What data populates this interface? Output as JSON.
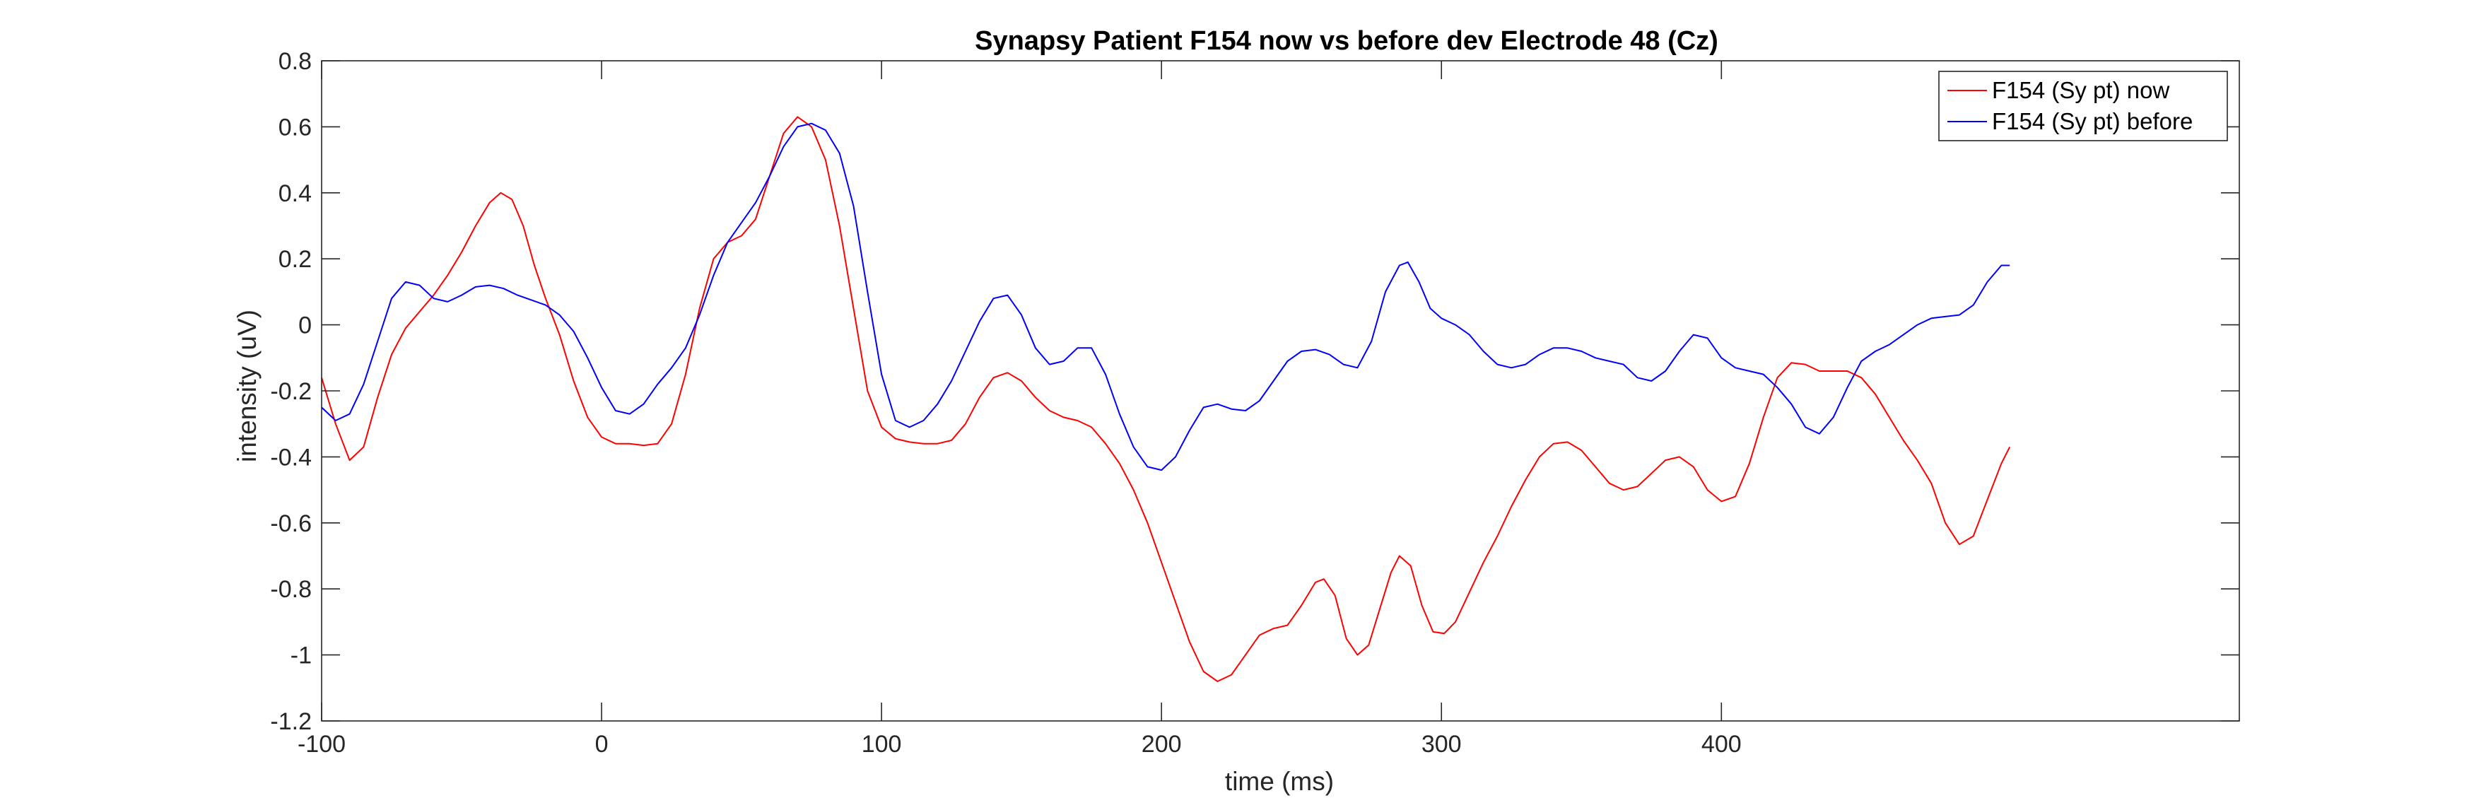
{
  "chart_data": {
    "type": "line",
    "title": "Synapsy Patient F154 now vs before dev Electrode 48 (Cz)",
    "xlabel": "time (ms)",
    "ylabel": "intensity (uV)",
    "xlim": [
      -100,
      585
    ],
    "ylim": [
      -1.2,
      0.8
    ],
    "xticks": [
      -100,
      0,
      100,
      200,
      300,
      400
    ],
    "xtick_labels": [
      "-100",
      "0",
      "100",
      "200",
      "300",
      "400"
    ],
    "yticks": [
      -1.2,
      -1,
      -0.8,
      -0.6,
      -0.4,
      -0.2,
      0,
      0.2,
      0.4,
      0.6,
      0.8
    ],
    "ytick_labels": [
      "-1.2",
      "-1",
      "-0.8",
      "-0.6",
      "-0.4",
      "-0.2",
      "0",
      "0.2",
      "0.4",
      "0.6",
      "0.8"
    ],
    "grid": false,
    "box": true,
    "legend_position": "top-right",
    "series": [
      {
        "name": "F154 (Sy pt) now",
        "color": "#ff0000",
        "points": [
          [
            -100,
            -0.16
          ],
          [
            -95,
            -0.3
          ],
          [
            -90,
            -0.41
          ],
          [
            -85,
            -0.37
          ],
          [
            -80,
            -0.22
          ],
          [
            -75,
            -0.09
          ],
          [
            -70,
            -0.01
          ],
          [
            -65,
            0.04
          ],
          [
            -60,
            0.09
          ],
          [
            -55,
            0.15
          ],
          [
            -50,
            0.22
          ],
          [
            -45,
            0.3
          ],
          [
            -40,
            0.37
          ],
          [
            -36,
            0.4
          ],
          [
            -32,
            0.38
          ],
          [
            -28,
            0.3
          ],
          [
            -24,
            0.18
          ],
          [
            -20,
            0.08
          ],
          [
            -15,
            -0.03
          ],
          [
            -10,
            -0.17
          ],
          [
            -5,
            -0.28
          ],
          [
            0,
            -0.34
          ],
          [
            5,
            -0.36
          ],
          [
            10,
            -0.36
          ],
          [
            15,
            -0.365
          ],
          [
            20,
            -0.36
          ],
          [
            25,
            -0.3
          ],
          [
            30,
            -0.15
          ],
          [
            35,
            0.05
          ],
          [
            40,
            0.2
          ],
          [
            45,
            0.25
          ],
          [
            50,
            0.27
          ],
          [
            55,
            0.32
          ],
          [
            60,
            0.45
          ],
          [
            65,
            0.58
          ],
          [
            70,
            0.63
          ],
          [
            75,
            0.6
          ],
          [
            80,
            0.5
          ],
          [
            85,
            0.3
          ],
          [
            90,
            0.05
          ],
          [
            95,
            -0.2
          ],
          [
            100,
            -0.31
          ],
          [
            105,
            -0.345
          ],
          [
            110,
            -0.355
          ],
          [
            115,
            -0.36
          ],
          [
            120,
            -0.36
          ],
          [
            125,
            -0.35
          ],
          [
            130,
            -0.3
          ],
          [
            135,
            -0.22
          ],
          [
            140,
            -0.16
          ],
          [
            145,
            -0.145
          ],
          [
            150,
            -0.17
          ],
          [
            155,
            -0.22
          ],
          [
            160,
            -0.26
          ],
          [
            165,
            -0.28
          ],
          [
            170,
            -0.29
          ],
          [
            175,
            -0.31
          ],
          [
            180,
            -0.36
          ],
          [
            185,
            -0.42
          ],
          [
            190,
            -0.5
          ],
          [
            195,
            -0.6
          ],
          [
            200,
            -0.72
          ],
          [
            205,
            -0.84
          ],
          [
            210,
            -0.96
          ],
          [
            215,
            -1.05
          ],
          [
            220,
            -1.08
          ],
          [
            225,
            -1.06
          ],
          [
            230,
            -1.0
          ],
          [
            235,
            -0.94
          ],
          [
            240,
            -0.92
          ],
          [
            245,
            -0.91
          ],
          [
            250,
            -0.85
          ],
          [
            255,
            -0.78
          ],
          [
            258,
            -0.77
          ],
          [
            262,
            -0.82
          ],
          [
            266,
            -0.95
          ],
          [
            270,
            -1.0
          ],
          [
            274,
            -0.97
          ],
          [
            278,
            -0.86
          ],
          [
            282,
            -0.75
          ],
          [
            285,
            -0.7
          ],
          [
            289,
            -0.73
          ],
          [
            293,
            -0.85
          ],
          [
            297,
            -0.93
          ],
          [
            301,
            -0.935
          ],
          [
            305,
            -0.9
          ],
          [
            310,
            -0.81
          ],
          [
            315,
            -0.72
          ],
          [
            320,
            -0.64
          ],
          [
            325,
            -0.55
          ],
          [
            330,
            -0.47
          ],
          [
            335,
            -0.4
          ],
          [
            340,
            -0.36
          ],
          [
            345,
            -0.355
          ],
          [
            350,
            -0.38
          ],
          [
            355,
            -0.43
          ],
          [
            360,
            -0.48
          ],
          [
            365,
            -0.5
          ],
          [
            370,
            -0.49
          ],
          [
            375,
            -0.45
          ],
          [
            380,
            -0.41
          ],
          [
            385,
            -0.4
          ],
          [
            390,
            -0.43
          ],
          [
            395,
            -0.5
          ],
          [
            400,
            -0.535
          ],
          [
            405,
            -0.52
          ],
          [
            410,
            -0.42
          ],
          [
            415,
            -0.28
          ],
          [
            420,
            -0.16
          ],
          [
            425,
            -0.115
          ],
          [
            430,
            -0.12
          ],
          [
            435,
            -0.14
          ],
          [
            440,
            -0.14
          ],
          [
            445,
            -0.14
          ],
          [
            450,
            -0.16
          ],
          [
            455,
            -0.21
          ],
          [
            460,
            -0.28
          ],
          [
            465,
            -0.35
          ],
          [
            470,
            -0.41
          ],
          [
            475,
            -0.48
          ],
          [
            480,
            -0.6
          ],
          [
            485,
            -0.665
          ],
          [
            490,
            -0.64
          ],
          [
            495,
            -0.53
          ],
          [
            500,
            -0.42
          ],
          [
            503,
            -0.37
          ]
        ]
      },
      {
        "name": "F154 (Sy pt) before",
        "color": "#0000ff",
        "points": [
          [
            -100,
            -0.25
          ],
          [
            -95,
            -0.29
          ],
          [
            -90,
            -0.27
          ],
          [
            -85,
            -0.18
          ],
          [
            -80,
            -0.05
          ],
          [
            -75,
            0.08
          ],
          [
            -70,
            0.13
          ],
          [
            -65,
            0.12
          ],
          [
            -60,
            0.08
          ],
          [
            -55,
            0.07
          ],
          [
            -50,
            0.09
          ],
          [
            -45,
            0.115
          ],
          [
            -40,
            0.12
          ],
          [
            -35,
            0.11
          ],
          [
            -30,
            0.09
          ],
          [
            -25,
            0.075
          ],
          [
            -20,
            0.06
          ],
          [
            -15,
            0.03
          ],
          [
            -10,
            -0.02
          ],
          [
            -5,
            -0.1
          ],
          [
            0,
            -0.19
          ],
          [
            5,
            -0.26
          ],
          [
            10,
            -0.27
          ],
          [
            15,
            -0.24
          ],
          [
            20,
            -0.18
          ],
          [
            25,
            -0.13
          ],
          [
            30,
            -0.07
          ],
          [
            35,
            0.03
          ],
          [
            40,
            0.15
          ],
          [
            45,
            0.25
          ],
          [
            50,
            0.31
          ],
          [
            55,
            0.37
          ],
          [
            60,
            0.45
          ],
          [
            65,
            0.54
          ],
          [
            70,
            0.6
          ],
          [
            75,
            0.61
          ],
          [
            80,
            0.59
          ],
          [
            85,
            0.52
          ],
          [
            90,
            0.36
          ],
          [
            95,
            0.1
          ],
          [
            100,
            -0.15
          ],
          [
            105,
            -0.29
          ],
          [
            110,
            -0.31
          ],
          [
            115,
            -0.29
          ],
          [
            120,
            -0.24
          ],
          [
            125,
            -0.17
          ],
          [
            130,
            -0.08
          ],
          [
            135,
            0.01
          ],
          [
            140,
            0.08
          ],
          [
            145,
            0.09
          ],
          [
            150,
            0.03
          ],
          [
            155,
            -0.07
          ],
          [
            160,
            -0.12
          ],
          [
            165,
            -0.11
          ],
          [
            170,
            -0.07
          ],
          [
            175,
            -0.07
          ],
          [
            180,
            -0.15
          ],
          [
            185,
            -0.27
          ],
          [
            190,
            -0.37
          ],
          [
            195,
            -0.43
          ],
          [
            200,
            -0.44
          ],
          [
            205,
            -0.4
          ],
          [
            210,
            -0.32
          ],
          [
            215,
            -0.25
          ],
          [
            220,
            -0.24
          ],
          [
            225,
            -0.255
          ],
          [
            230,
            -0.26
          ],
          [
            235,
            -0.23
          ],
          [
            240,
            -0.17
          ],
          [
            245,
            -0.11
          ],
          [
            250,
            -0.08
          ],
          [
            255,
            -0.075
          ],
          [
            260,
            -0.09
          ],
          [
            265,
            -0.12
          ],
          [
            270,
            -0.13
          ],
          [
            275,
            -0.05
          ],
          [
            280,
            0.1
          ],
          [
            285,
            0.18
          ],
          [
            288,
            0.19
          ],
          [
            292,
            0.13
          ],
          [
            296,
            0.05
          ],
          [
            300,
            0.02
          ],
          [
            305,
            0.0
          ],
          [
            310,
            -0.03
          ],
          [
            315,
            -0.08
          ],
          [
            320,
            -0.12
          ],
          [
            325,
            -0.13
          ],
          [
            330,
            -0.12
          ],
          [
            335,
            -0.09
          ],
          [
            340,
            -0.07
          ],
          [
            345,
            -0.07
          ],
          [
            350,
            -0.08
          ],
          [
            355,
            -0.1
          ],
          [
            360,
            -0.11
          ],
          [
            365,
            -0.12
          ],
          [
            370,
            -0.16
          ],
          [
            375,
            -0.17
          ],
          [
            380,
            -0.14
          ],
          [
            385,
            -0.08
          ],
          [
            390,
            -0.03
          ],
          [
            395,
            -0.04
          ],
          [
            400,
            -0.1
          ],
          [
            405,
            -0.13
          ],
          [
            410,
            -0.14
          ],
          [
            415,
            -0.15
          ],
          [
            420,
            -0.19
          ],
          [
            425,
            -0.24
          ],
          [
            430,
            -0.31
          ],
          [
            435,
            -0.33
          ],
          [
            440,
            -0.28
          ],
          [
            445,
            -0.19
          ],
          [
            450,
            -0.11
          ],
          [
            455,
            -0.08
          ],
          [
            460,
            -0.06
          ],
          [
            465,
            -0.03
          ],
          [
            470,
            0.0
          ],
          [
            475,
            0.02
          ],
          [
            480,
            0.025
          ],
          [
            485,
            0.03
          ],
          [
            490,
            0.06
          ],
          [
            495,
            0.13
          ],
          [
            500,
            0.18
          ],
          [
            503,
            0.18
          ]
        ]
      }
    ]
  }
}
